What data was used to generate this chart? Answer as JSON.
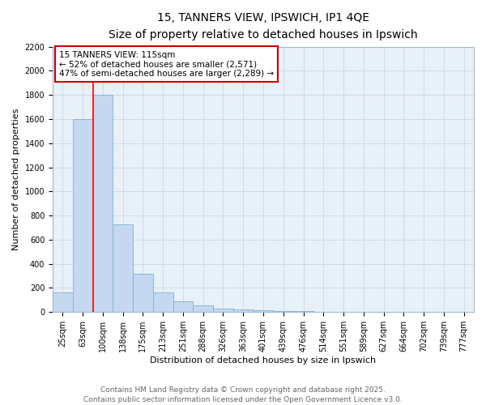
{
  "title": "15, TANNERS VIEW, IPSWICH, IP1 4QE",
  "subtitle": "Size of property relative to detached houses in Ipswich",
  "xlabel": "Distribution of detached houses by size in Ipswich",
  "ylabel": "Number of detached properties",
  "bar_labels": [
    "25sqm",
    "63sqm",
    "100sqm",
    "138sqm",
    "175sqm",
    "213sqm",
    "251sqm",
    "288sqm",
    "326sqm",
    "363sqm",
    "401sqm",
    "439sqm",
    "476sqm",
    "514sqm",
    "551sqm",
    "589sqm",
    "627sqm",
    "664sqm",
    "702sqm",
    "739sqm",
    "777sqm"
  ],
  "bar_values": [
    160,
    1600,
    1800,
    730,
    320,
    160,
    90,
    55,
    30,
    20,
    15,
    5,
    5,
    0,
    0,
    0,
    0,
    0,
    0,
    0,
    0
  ],
  "bar_color": "#c5d8f0",
  "bar_edge_color": "#7fb0d8",
  "ylim": [
    0,
    2200
  ],
  "yticks": [
    0,
    200,
    400,
    600,
    800,
    1000,
    1200,
    1400,
    1600,
    1800,
    2000,
    2200
  ],
  "red_line_x": 1.5,
  "annotation_text": "15 TANNERS VIEW: 115sqm\n← 52% of detached houses are smaller (2,571)\n47% of semi-detached houses are larger (2,289) →",
  "annotation_box_color": "#cc0000",
  "grid_color": "#c8d8e8",
  "bg_color": "#e8f0f8",
  "footer_line1": "Contains HM Land Registry data © Crown copyright and database right 2025.",
  "footer_line2": "Contains public sector information licensed under the Open Government Licence v3.0.",
  "title_fontsize": 10,
  "subtitle_fontsize": 9,
  "axis_label_fontsize": 8,
  "tick_fontsize": 7,
  "annotation_fontsize": 7.5,
  "footer_fontsize": 6.5
}
